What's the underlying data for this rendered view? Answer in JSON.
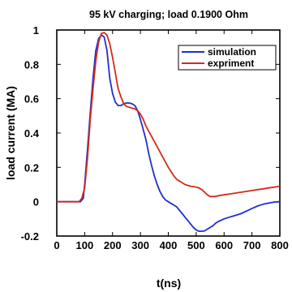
{
  "chart_data": {
    "type": "line",
    "title": "95 kV charging; load 0.1900 Ohm",
    "xlabel": "t(ns)",
    "ylabel": "load current (MA)",
    "xlim": [
      0,
      800
    ],
    "ylim": [
      -0.2,
      1.0
    ],
    "x_ticks": [
      0,
      100,
      200,
      300,
      400,
      500,
      600,
      700,
      800
    ],
    "y_ticks": [
      -0.2,
      0,
      0.2,
      0.4,
      0.6,
      0.8,
      1.0
    ],
    "x_tick_labels": [
      "0",
      "100",
      "200",
      "300",
      "400",
      "500",
      "600",
      "700",
      "800"
    ],
    "y_tick_labels": [
      "-0.2",
      "0",
      "0.2",
      "0.4",
      "0.6",
      "0.8",
      "1"
    ],
    "grid": false,
    "legend_position": "top-right",
    "series": [
      {
        "name": "simulation",
        "color": "#1f2fd0",
        "x": [
          0,
          85,
          95,
          100,
          110,
          120,
          130,
          140,
          150,
          160,
          170,
          180,
          190,
          200,
          210,
          220,
          230,
          240,
          250,
          260,
          270,
          280,
          290,
          300,
          310,
          320,
          330,
          340,
          350,
          360,
          370,
          380,
          390,
          400,
          410,
          420,
          430,
          440,
          450,
          460,
          470,
          480,
          490,
          500,
          510,
          520,
          530,
          540,
          550,
          560,
          570,
          580,
          600,
          620,
          640,
          660,
          680,
          700,
          720,
          740,
          760,
          780,
          800
        ],
        "y": [
          0.0,
          0.0,
          0.02,
          0.1,
          0.3,
          0.52,
          0.72,
          0.88,
          0.95,
          0.97,
          0.96,
          0.88,
          0.72,
          0.63,
          0.58,
          0.56,
          0.56,
          0.57,
          0.575,
          0.575,
          0.57,
          0.56,
          0.53,
          0.48,
          0.42,
          0.36,
          0.28,
          0.21,
          0.15,
          0.1,
          0.06,
          0.03,
          0.01,
          0.0,
          -0.01,
          -0.02,
          -0.03,
          -0.05,
          -0.07,
          -0.09,
          -0.11,
          -0.13,
          -0.15,
          -0.165,
          -0.172,
          -0.172,
          -0.17,
          -0.16,
          -0.15,
          -0.14,
          -0.125,
          -0.115,
          -0.1,
          -0.09,
          -0.08,
          -0.07,
          -0.055,
          -0.04,
          -0.025,
          -0.015,
          -0.008,
          -0.002,
          0.0
        ]
      },
      {
        "name": "expriment",
        "color": "#d42a1a",
        "x": [
          0,
          80,
          90,
          100,
          110,
          120,
          130,
          140,
          150,
          160,
          170,
          180,
          190,
          200,
          210,
          220,
          230,
          240,
          250,
          260,
          270,
          280,
          290,
          300,
          310,
          320,
          330,
          340,
          350,
          360,
          370,
          380,
          390,
          400,
          410,
          420,
          430,
          440,
          450,
          460,
          470,
          480,
          490,
          500,
          510,
          520,
          530,
          540,
          550,
          560,
          570,
          580,
          600,
          620,
          640,
          660,
          680,
          700,
          720,
          740,
          760,
          780,
          800
        ],
        "y": [
          0.0,
          0.0,
          0.02,
          0.08,
          0.25,
          0.48,
          0.66,
          0.82,
          0.93,
          0.98,
          0.985,
          0.97,
          0.92,
          0.84,
          0.75,
          0.66,
          0.61,
          0.57,
          0.555,
          0.55,
          0.545,
          0.54,
          0.53,
          0.51,
          0.48,
          0.44,
          0.41,
          0.38,
          0.35,
          0.32,
          0.29,
          0.26,
          0.23,
          0.2,
          0.175,
          0.15,
          0.13,
          0.12,
          0.11,
          0.1,
          0.095,
          0.09,
          0.088,
          0.085,
          0.08,
          0.07,
          0.055,
          0.04,
          0.03,
          0.03,
          0.03,
          0.035,
          0.04,
          0.045,
          0.05,
          0.055,
          0.06,
          0.065,
          0.07,
          0.075,
          0.08,
          0.085,
          0.09
        ]
      }
    ]
  }
}
